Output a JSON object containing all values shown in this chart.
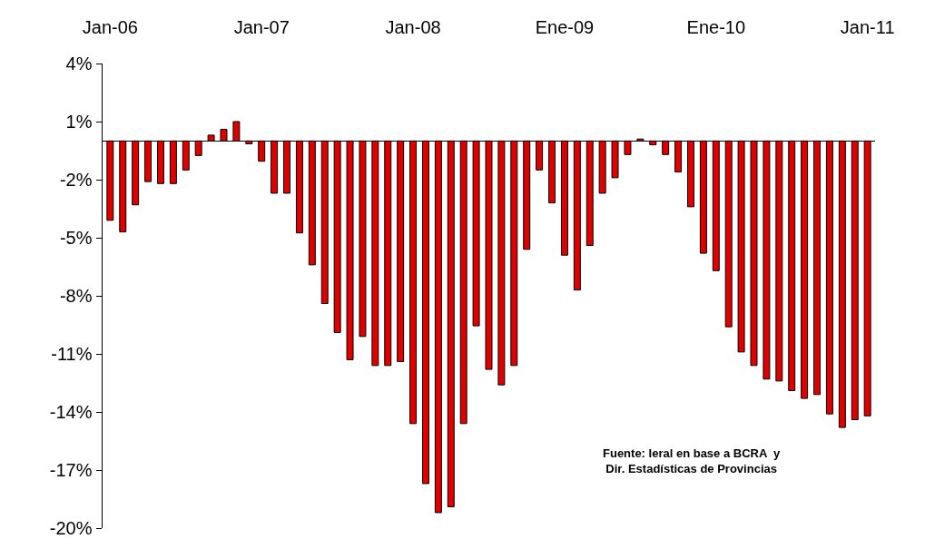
{
  "chart_data": {
    "type": "bar",
    "categories": [
      "Jan-06",
      null,
      null,
      null,
      null,
      null,
      null,
      null,
      null,
      null,
      null,
      null,
      "Jan-07",
      null,
      null,
      null,
      null,
      null,
      null,
      null,
      null,
      null,
      null,
      null,
      "Jan-08",
      null,
      null,
      null,
      null,
      null,
      null,
      null,
      null,
      null,
      null,
      null,
      "Ene-09",
      null,
      null,
      null,
      null,
      null,
      null,
      null,
      null,
      null,
      null,
      null,
      "Ene-10",
      null,
      null,
      null,
      null,
      null,
      null,
      null,
      null,
      null,
      null,
      null,
      "Jan-11"
    ],
    "values": [
      -4.1,
      -4.7,
      -3.3,
      -2.1,
      -2.2,
      -2.2,
      -1.5,
      -0.75,
      0.3,
      0.6,
      1.0,
      -0.15,
      -1.05,
      -2.7,
      -2.7,
      -4.75,
      -6.4,
      -8.4,
      -9.9,
      -11.3,
      -10.1,
      -11.6,
      -11.6,
      -11.4,
      -14.6,
      -17.7,
      -19.2,
      -18.9,
      -14.6,
      -9.55,
      -11.8,
      -12.6,
      -11.6,
      -5.6,
      -1.5,
      -3.2,
      -5.9,
      -7.7,
      -5.4,
      -2.7,
      -1.9,
      -0.7,
      0.1,
      -0.2,
      -0.7,
      -1.6,
      -3.4,
      -5.8,
      -6.7,
      -9.6,
      -10.9,
      -11.6,
      -12.3,
      -12.4,
      -12.9,
      -13.3,
      -13.1,
      -14.1,
      -14.8,
      -14.4,
      -14.2
    ],
    "color": "#e00000",
    "ylim": [
      -20,
      4
    ],
    "yticks": [
      {
        "value": 4,
        "label": "4%"
      },
      {
        "value": 1,
        "label": "1%"
      },
      {
        "value": -2,
        "label": "-2%"
      },
      {
        "value": -5,
        "label": "-5%"
      },
      {
        "value": -8,
        "label": "-8%"
      },
      {
        "value": -11,
        "label": "-11%"
      },
      {
        "value": -14,
        "label": "-14%"
      },
      {
        "value": -17,
        "label": "-17%"
      },
      {
        "value": -20,
        "label": "-20%"
      }
    ],
    "grid": false,
    "annotations": [
      "Fuente: Ieral en base a BCRA  y\nDir. Estadísticas de Provincias"
    ]
  }
}
